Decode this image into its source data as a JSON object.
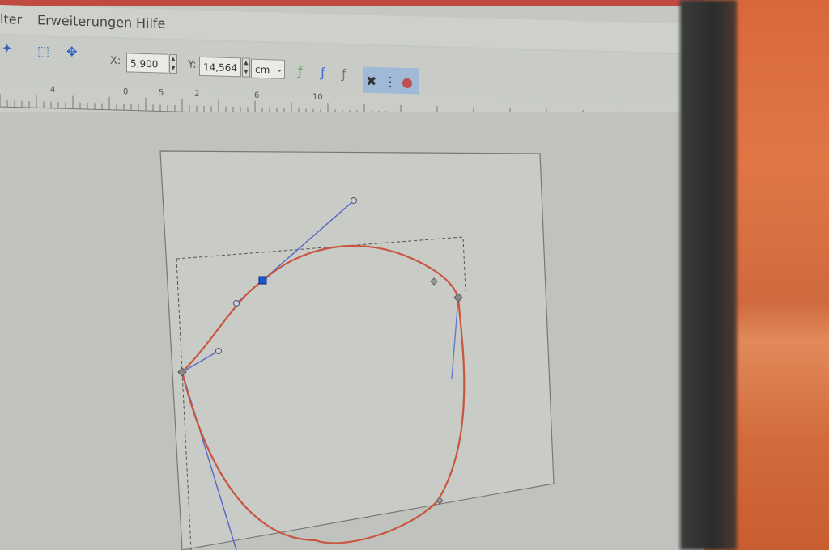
{
  "menu": {
    "items": [
      "lter",
      "Erweiterungen",
      "Hilfe"
    ]
  },
  "toolbar": {
    "x_label": "X:",
    "x_value": "5,900",
    "y_label": "Y:",
    "y_value": "14,564",
    "unit": "cm"
  },
  "ruler": {
    "labels": [
      "4",
      "0",
      "5",
      "2",
      "6",
      "10"
    ]
  },
  "colors": {
    "curve": "#c8553f",
    "handle": "#5566cc",
    "node_selected": "#1a56d0",
    "accent_orange": "#e07645"
  },
  "icons": [
    "node-select-icon",
    "node-transform-icon",
    "join-nodes-icon",
    "break-path-icon",
    "show-handles-icon",
    "show-outline-icon",
    "node-color-icon"
  ]
}
